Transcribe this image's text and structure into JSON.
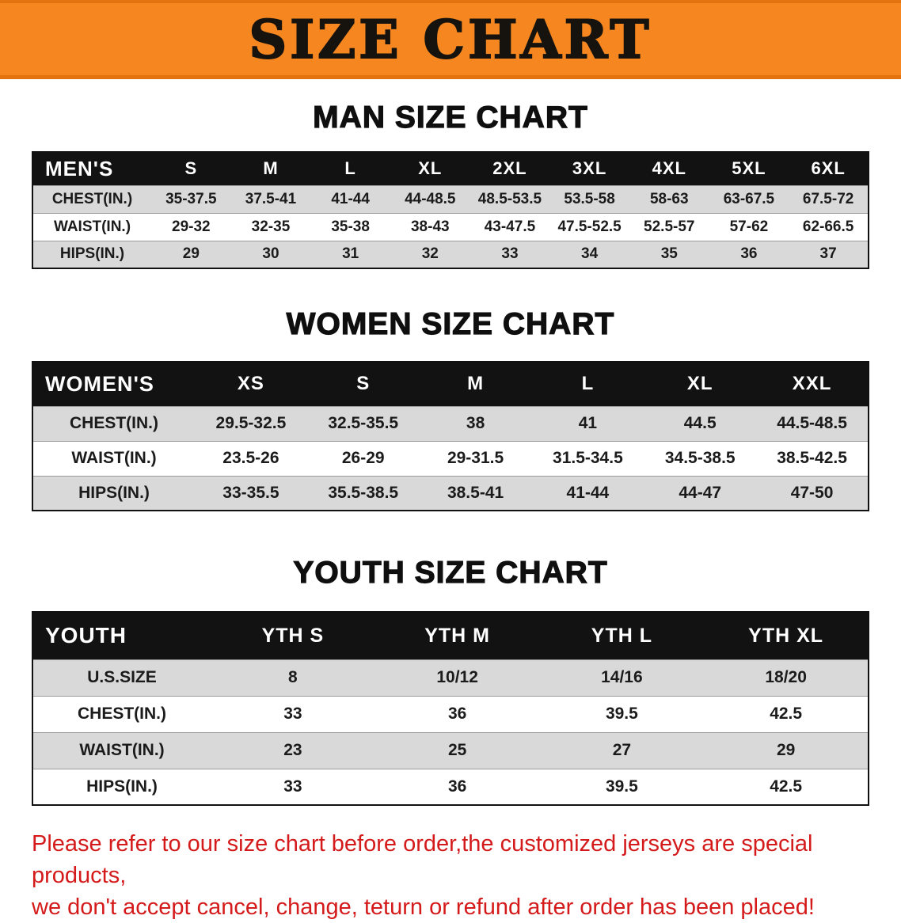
{
  "banner": {
    "title": "SIZE CHART"
  },
  "colors": {
    "banner_bg": "#f6861f",
    "banner_edge": "#e2730e",
    "header_bg": "#121212",
    "header_text": "#ffffff",
    "stripe_gray": "#d9d9d9",
    "table_border": "#111111",
    "disclaimer_red": "#d41a1a"
  },
  "men": {
    "heading": "MAN SIZE CHART",
    "table": {
      "header": [
        "MEN'S",
        "S",
        "M",
        "L",
        "XL",
        "2XL",
        "3XL",
        "4XL",
        "5XL",
        "6XL"
      ],
      "rows": [
        [
          "CHEST(IN.)",
          "35-37.5",
          "37.5-41",
          "41-44",
          "44-48.5",
          "48.5-53.5",
          "53.5-58",
          "58-63",
          "63-67.5",
          "67.5-72"
        ],
        [
          "WAIST(IN.)",
          "29-32",
          "32-35",
          "35-38",
          "38-43",
          "43-47.5",
          "47.5-52.5",
          "52.5-57",
          "57-62",
          "62-66.5"
        ],
        [
          "HIPS(IN.)",
          "29",
          "30",
          "31",
          "32",
          "33",
          "34",
          "35",
          "36",
          "37"
        ]
      ]
    }
  },
  "women": {
    "heading": "WOMEN SIZE CHART",
    "table": {
      "header": [
        "WOMEN'S",
        "XS",
        "S",
        "M",
        "L",
        "XL",
        "XXL"
      ],
      "rows": [
        [
          "CHEST(IN.)",
          "29.5-32.5",
          "32.5-35.5",
          "38",
          "41",
          "44.5",
          "44.5-48.5"
        ],
        [
          "WAIST(IN.)",
          "23.5-26",
          "26-29",
          "29-31.5",
          "31.5-34.5",
          "34.5-38.5",
          "38.5-42.5"
        ],
        [
          "HIPS(IN.)",
          "33-35.5",
          "35.5-38.5",
          "38.5-41",
          "41-44",
          "44-47",
          "47-50"
        ]
      ]
    }
  },
  "youth": {
    "heading": "YOUTH SIZE CHART",
    "table": {
      "header": [
        "YOUTH",
        "YTH S",
        "YTH M",
        "YTH L",
        "YTH XL"
      ],
      "rows": [
        [
          "U.S.SIZE",
          "8",
          "10/12",
          "14/16",
          "18/20"
        ],
        [
          "CHEST(IN.)",
          "33",
          "36",
          "39.5",
          "42.5"
        ],
        [
          "WAIST(IN.)",
          "23",
          "25",
          "27",
          "29"
        ],
        [
          "HIPS(IN.)",
          "33",
          "36",
          "39.5",
          "42.5"
        ]
      ]
    }
  },
  "disclaimer": {
    "line1": "Please refer to our size chart before order,the customized jerseys are special products,",
    "line2": "we don't accept cancel, change, teturn or refund after order has been placed!"
  }
}
